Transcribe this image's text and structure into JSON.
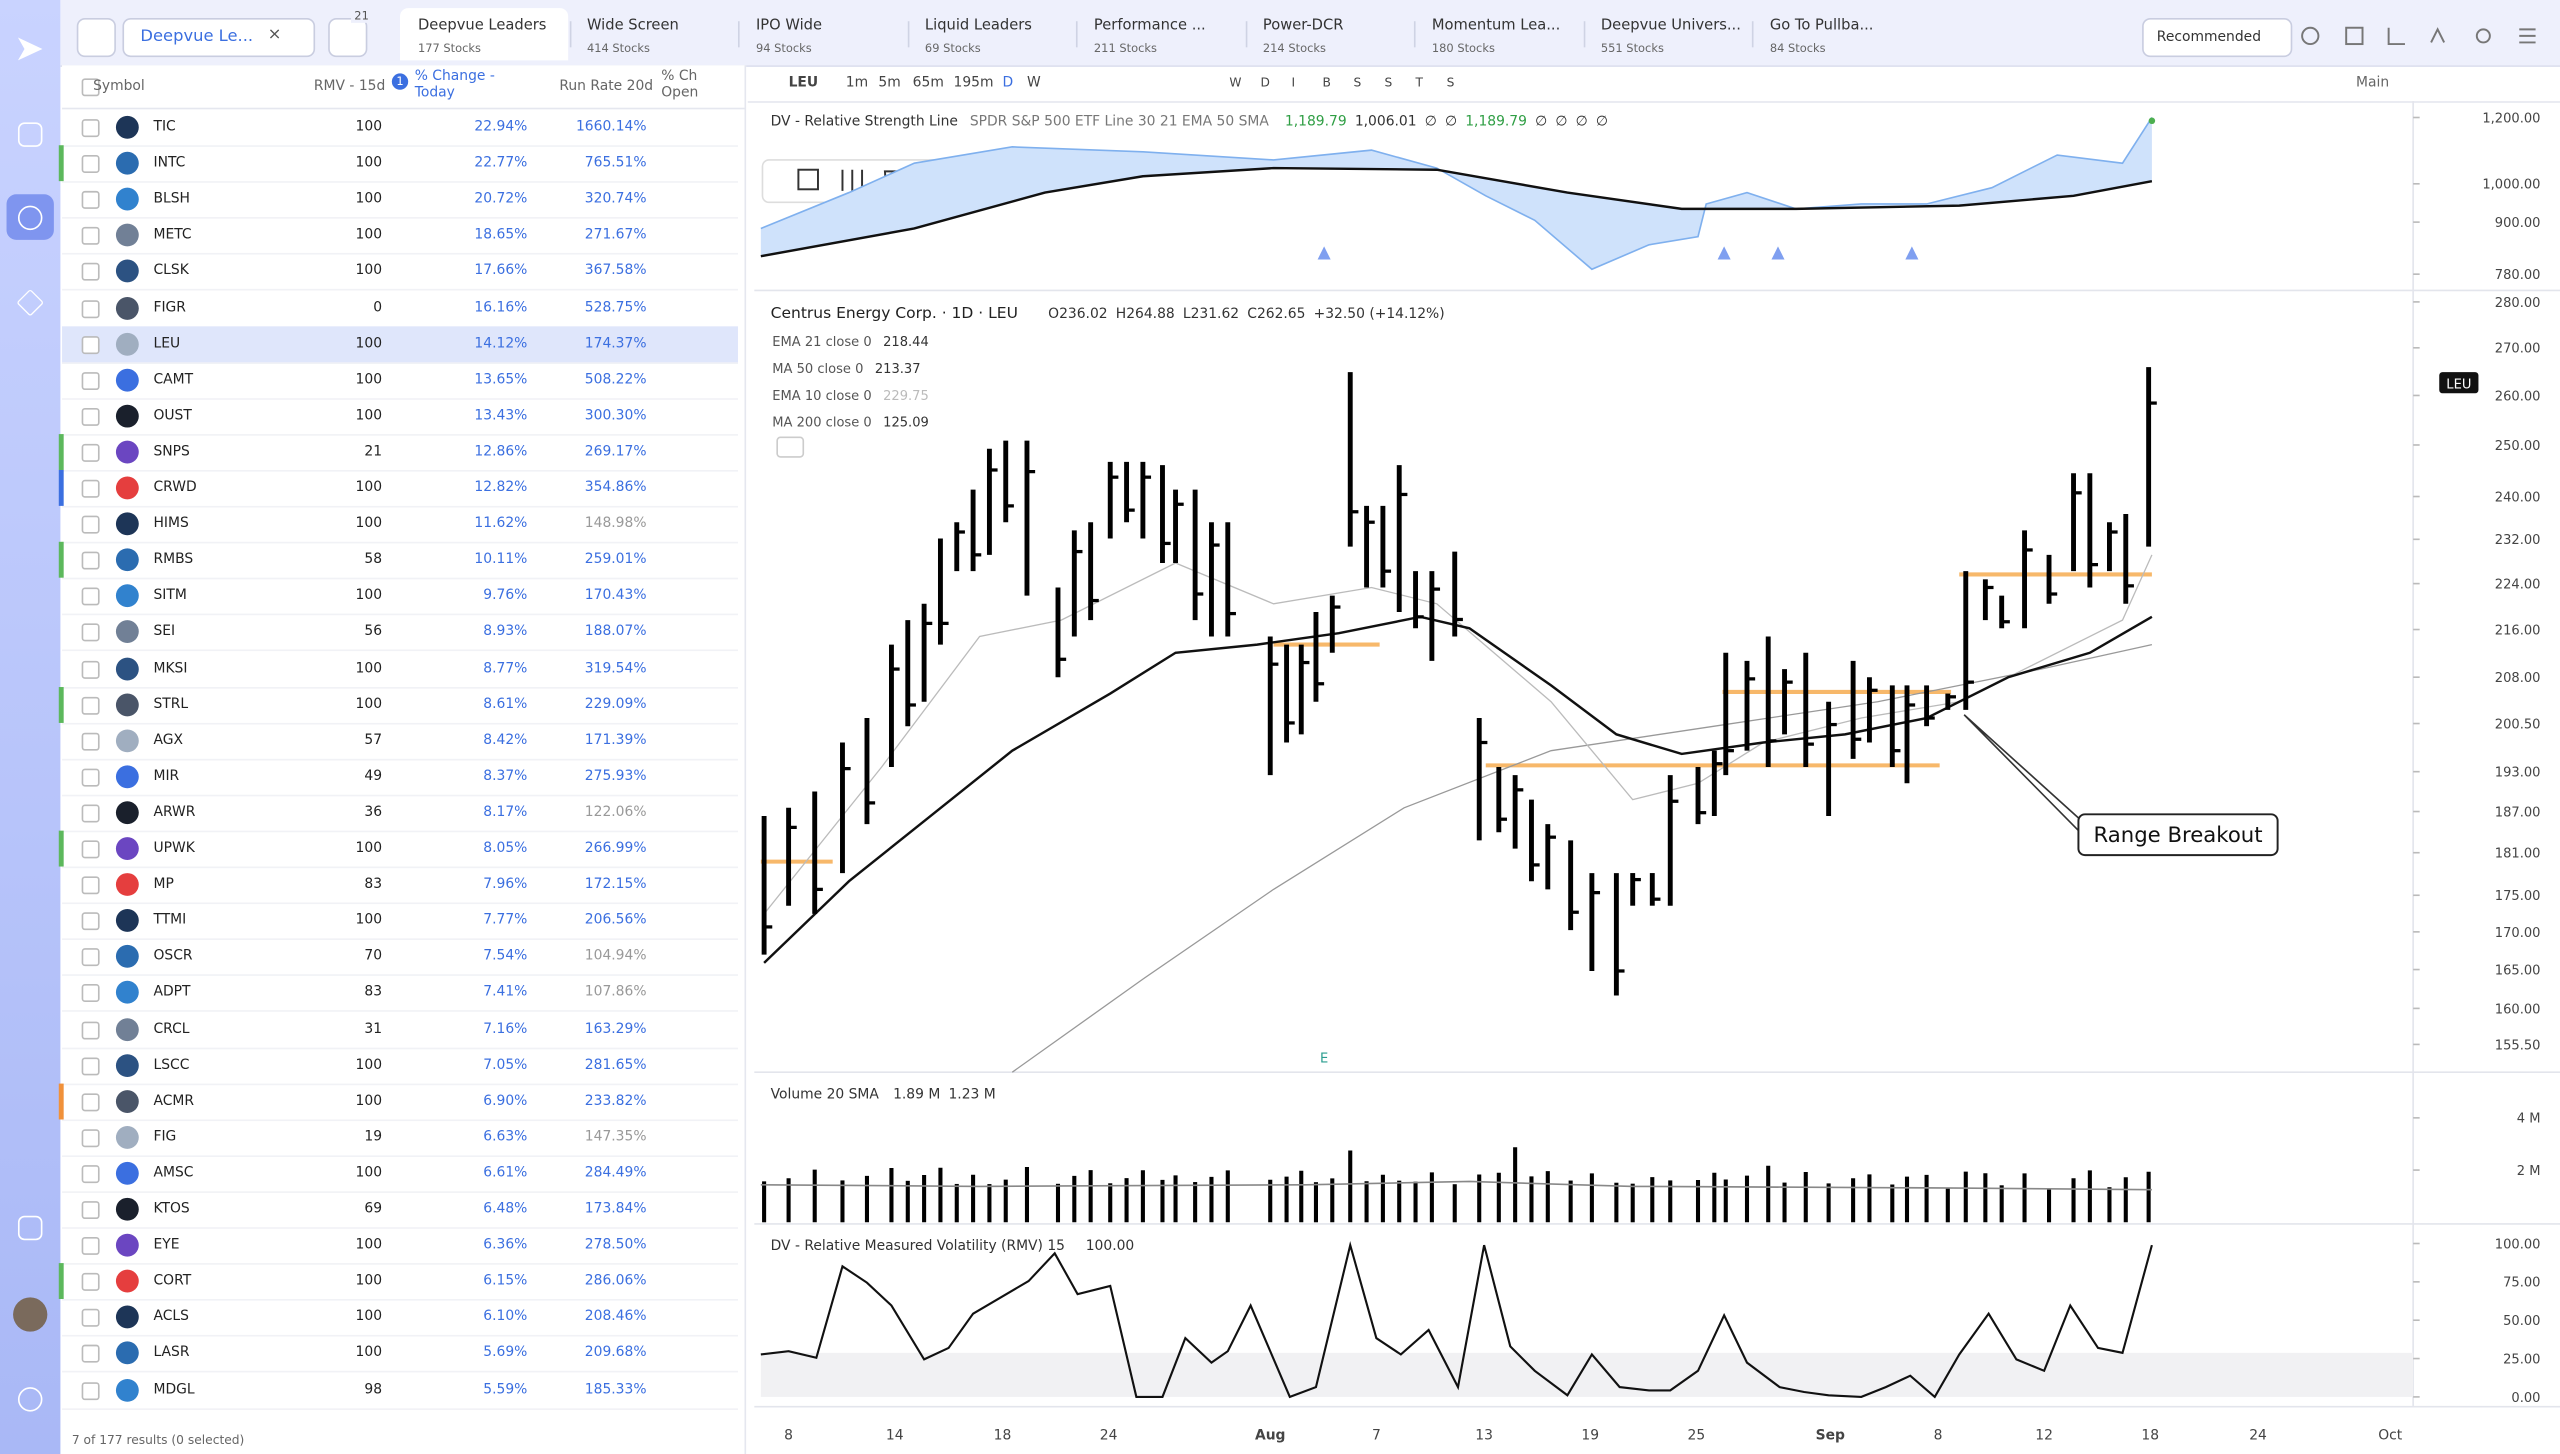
{
  "watchlist": {
    "name": "Deepvue Le...",
    "badge": "21"
  },
  "tabs": [
    {
      "name": "Deepvue Leaders",
      "count": "177 Stocks"
    },
    {
      "name": "Wide Screen",
      "count": "414 Stocks"
    },
    {
      "name": "IPO Wide",
      "count": "94 Stocks"
    },
    {
      "name": "Liquid Leaders",
      "count": "69 Stocks"
    },
    {
      "name": "Performance ...",
      "count": "211 Stocks"
    },
    {
      "name": "Power-DCR",
      "count": "214 Stocks"
    },
    {
      "name": "Momentum Lea...",
      "count": "180 Stocks"
    },
    {
      "name": "Deepvue Univers...",
      "count": "551 Stocks"
    },
    {
      "name": "Go To Pullba...",
      "count": "84 Stocks"
    }
  ],
  "sort": "Recommended",
  "table": {
    "columns": [
      "Symbol",
      "RMV - 15d",
      "% Change - Today",
      "Run Rate 20d",
      "% Ch Open"
    ],
    "sort_badge": "1",
    "selected": 6,
    "rows": [
      {
        "symbol": "TIC",
        "rmv": 100,
        "change": "22.94%",
        "run_rate": "1660.14%"
      },
      {
        "symbol": "INTC",
        "rmv": 100,
        "change": "22.77%",
        "run_rate": "765.51%",
        "flag": "#5cb85c"
      },
      {
        "symbol": "BLSH",
        "rmv": 100,
        "change": "20.72%",
        "run_rate": "320.74%"
      },
      {
        "symbol": "METC",
        "rmv": 100,
        "change": "18.65%",
        "run_rate": "271.67%"
      },
      {
        "symbol": "CLSK",
        "rmv": 100,
        "change": "17.66%",
        "run_rate": "367.58%"
      },
      {
        "symbol": "FIGR",
        "rmv": 0,
        "change": "16.16%",
        "run_rate": "528.75%"
      },
      {
        "symbol": "LEU",
        "rmv": 100,
        "change": "14.12%",
        "run_rate": "174.37%"
      },
      {
        "symbol": "CAMT",
        "rmv": 100,
        "change": "13.65%",
        "run_rate": "508.22%"
      },
      {
        "symbol": "OUST",
        "rmv": 100,
        "change": "13.43%",
        "run_rate": "300.30%"
      },
      {
        "symbol": "SNPS",
        "rmv": 21,
        "change": "12.86%",
        "run_rate": "269.17%",
        "flag": "#5cb85c"
      },
      {
        "symbol": "CRWD",
        "rmv": 100,
        "change": "12.82%",
        "run_rate": "354.86%",
        "flag": "#3b6fe0"
      },
      {
        "symbol": "HIMS",
        "rmv": 100,
        "change": "11.62%",
        "run_rate": "148.98%",
        "muted": true
      },
      {
        "symbol": "RMBS",
        "rmv": 58,
        "change": "10.11%",
        "run_rate": "259.01%",
        "flag": "#5cb85c"
      },
      {
        "symbol": "SITM",
        "rmv": 100,
        "change": "9.76%",
        "run_rate": "170.43%"
      },
      {
        "symbol": "SEI",
        "rmv": 56,
        "change": "8.93%",
        "run_rate": "188.07%"
      },
      {
        "symbol": "MKSI",
        "rmv": 100,
        "change": "8.77%",
        "run_rate": "319.54%"
      },
      {
        "symbol": "STRL",
        "rmv": 100,
        "change": "8.61%",
        "run_rate": "229.09%",
        "flag": "#5cb85c"
      },
      {
        "symbol": "AGX",
        "rmv": 57,
        "change": "8.42%",
        "run_rate": "171.39%"
      },
      {
        "symbol": "MIR",
        "rmv": 49,
        "change": "8.37%",
        "run_rate": "275.93%"
      },
      {
        "symbol": "ARWR",
        "rmv": 36,
        "change": "8.17%",
        "run_rate": "122.06%",
        "muted": true
      },
      {
        "symbol": "UPWK",
        "rmv": 100,
        "change": "8.05%",
        "run_rate": "266.99%",
        "flag": "#5cb85c"
      },
      {
        "symbol": "MP",
        "rmv": 83,
        "change": "7.96%",
        "run_rate": "172.15%"
      },
      {
        "symbol": "TTMI",
        "rmv": 100,
        "change": "7.77%",
        "run_rate": "206.56%"
      },
      {
        "symbol": "OSCR",
        "rmv": 70,
        "change": "7.54%",
        "run_rate": "104.94%",
        "muted": true
      },
      {
        "symbol": "ADPT",
        "rmv": 83,
        "change": "7.41%",
        "run_rate": "107.86%",
        "muted": true
      },
      {
        "symbol": "CRCL",
        "rmv": 31,
        "change": "7.16%",
        "run_rate": "163.29%"
      },
      {
        "symbol": "LSCC",
        "rmv": 100,
        "change": "7.05%",
        "run_rate": "281.65%"
      },
      {
        "symbol": "ACMR",
        "rmv": 100,
        "change": "6.90%",
        "run_rate": "233.82%",
        "flag": "#f0913a"
      },
      {
        "symbol": "FIG",
        "rmv": 19,
        "change": "6.63%",
        "run_rate": "147.35%",
        "muted": true
      },
      {
        "symbol": "AMSC",
        "rmv": 100,
        "change": "6.61%",
        "run_rate": "284.49%"
      },
      {
        "symbol": "KTOS",
        "rmv": 69,
        "change": "6.48%",
        "run_rate": "173.84%"
      },
      {
        "symbol": "EYE",
        "rmv": 100,
        "change": "6.36%",
        "run_rate": "278.50%"
      },
      {
        "symbol": "CORT",
        "rmv": 100,
        "change": "6.15%",
        "run_rate": "286.06%",
        "flag": "#5cb85c"
      },
      {
        "symbol": "ACLS",
        "rmv": 100,
        "change": "6.10%",
        "run_rate": "208.46%"
      },
      {
        "symbol": "LASR",
        "rmv": 100,
        "change": "5.69%",
        "run_rate": "209.68%"
      },
      {
        "symbol": "MDGL",
        "rmv": 98,
        "change": "5.59%",
        "run_rate": "185.33%"
      }
    ],
    "footer": "7 of 177 results (0 selected)"
  },
  "toolbar": {
    "symbol": "LEU",
    "intervals": [
      "1m",
      "5m",
      "65m",
      "195m",
      "D",
      "W"
    ],
    "tools": [
      "W",
      "D",
      "I",
      "B",
      "S",
      "S",
      "T",
      "S"
    ],
    "layout": "Main"
  },
  "rs_pane": {
    "title": "DV - Relative Strength Line",
    "params": "SPDR S&P 500 ETF Line 30 21 EMA 50 SMA",
    "values": [
      "1,189.79",
      "1,006.01",
      "∅",
      "∅",
      "1,189.79",
      "∅",
      "∅",
      "∅",
      "∅"
    ],
    "yticks": [
      {
        "value": 1200,
        "label": "1,200.00"
      },
      {
        "value": 1000,
        "label": "1,000.00"
      },
      {
        "value": 900,
        "label": "900.00"
      },
      {
        "value": 780,
        "label": "780.00"
      }
    ]
  },
  "price_pane": {
    "title": "Centrus Energy Corp. · 1D · LEU",
    "ohlc": [
      "O236.02",
      "H264.88",
      "L231.62",
      "C262.65",
      "+32.50 (+14.12%)"
    ],
    "indicators": [
      {
        "name": "EMA 21 close 0",
        "value": "218.44"
      },
      {
        "name": "MA 50 close 0",
        "value": "213.37"
      },
      {
        "name": "EMA 10 close 0",
        "value": "229.75"
      },
      {
        "name": "MA 200 close 0",
        "value": "125.09"
      }
    ],
    "price_tag": "LEU",
    "earnings": "E",
    "annotation": "Range Breakout",
    "yticks": [
      {
        "value": 280,
        "label": "280.00"
      },
      {
        "value": 270,
        "label": "270.00"
      },
      {
        "value": 260,
        "label": "260.00"
      },
      {
        "value": 250,
        "label": "250.00"
      },
      {
        "value": 240,
        "label": "240.00"
      },
      {
        "value": 232,
        "label": "232.00"
      },
      {
        "value": 224,
        "label": "224.00"
      },
      {
        "value": 216,
        "label": "216.00"
      },
      {
        "value": 208,
        "label": "208.00"
      },
      {
        "value": 200.5,
        "label": "200.50"
      },
      {
        "value": 193,
        "label": "193.00"
      },
      {
        "value": 187,
        "label": "187.00"
      },
      {
        "value": 181,
        "label": "181.00"
      },
      {
        "value": 175,
        "label": "175.00"
      },
      {
        "value": 170,
        "label": "170.00"
      },
      {
        "value": 165,
        "label": "165.00"
      },
      {
        "value": 160,
        "label": "160.00"
      },
      {
        "value": 155.5,
        "label": "155.50"
      }
    ],
    "log_scale": true
  },
  "volume_pane": {
    "title": "Volume 20 SMA",
    "values": [
      "1.89 M",
      "1.23 M"
    ],
    "yticks": [
      {
        "value": 4000000,
        "label": "4 M"
      },
      {
        "value": 2000000,
        "label": "2 M"
      }
    ]
  },
  "rmv_pane": {
    "title": "DV - Relative Measured Volatility (RMV) 15",
    "value": "100.00",
    "yticks": [
      {
        "value": 100,
        "label": "100.00"
      },
      {
        "value": 75,
        "label": "75.00"
      },
      {
        "value": 50,
        "label": "50.00"
      },
      {
        "value": 25,
        "label": "25.00"
      },
      {
        "value": 0,
        "label": "0.00"
      }
    ]
  },
  "x_labels": [
    "8",
    "14",
    "18",
    "24",
    "Aug",
    "7",
    "13",
    "19",
    "25",
    "Sep",
    "8",
    "12",
    "18",
    "24",
    "Oct"
  ]
}
